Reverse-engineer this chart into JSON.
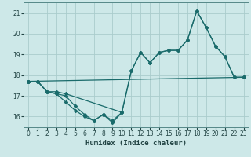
{
  "xlabel": "Humidex (Indice chaleur)",
  "bg_color": "#cde8e8",
  "grid_color": "#aacccc",
  "line_color": "#1a6b6b",
  "spine_color": "#558888",
  "tick_color": "#224444",
  "xlim": [
    -0.5,
    23.5
  ],
  "ylim": [
    15.5,
    21.5
  ],
  "yticks": [
    16,
    17,
    18,
    19,
    20,
    21
  ],
  "xticks": [
    0,
    1,
    2,
    3,
    4,
    5,
    6,
    7,
    8,
    9,
    10,
    11,
    12,
    13,
    14,
    15,
    16,
    17,
    18,
    19,
    20,
    21,
    22,
    23
  ],
  "lines": [
    {
      "x": [
        0,
        1,
        2,
        3,
        4,
        10,
        11,
        12,
        13,
        14,
        15,
        16,
        17,
        18,
        19,
        20,
        21,
        22,
        23
      ],
      "y": [
        17.7,
        17.7,
        17.2,
        17.2,
        17.1,
        16.2,
        18.2,
        19.1,
        18.6,
        19.1,
        19.2,
        19.2,
        19.7,
        21.1,
        20.3,
        19.4,
        18.9,
        17.9,
        17.9
      ]
    },
    {
      "x": [
        0,
        1,
        2,
        3,
        4,
        5,
        6,
        7,
        8,
        9,
        10,
        11,
        12,
        13,
        14,
        15,
        16,
        17,
        18,
        19,
        20,
        21,
        22,
        23
      ],
      "y": [
        17.7,
        17.7,
        17.2,
        17.1,
        17.0,
        16.5,
        16.1,
        15.8,
        16.1,
        15.8,
        16.2,
        18.2,
        19.1,
        18.6,
        19.1,
        19.2,
        19.2,
        19.7,
        21.1,
        20.3,
        19.4,
        18.9,
        17.9,
        17.9
      ]
    },
    {
      "x": [
        0,
        1,
        2,
        3,
        4,
        5,
        6,
        7,
        8,
        9,
        10
      ],
      "y": [
        17.7,
        17.7,
        17.2,
        17.1,
        16.7,
        16.3,
        16.0,
        15.8,
        16.1,
        15.7,
        16.2
      ]
    },
    {
      "x": [
        0,
        23
      ],
      "y": [
        17.7,
        17.9
      ]
    }
  ]
}
